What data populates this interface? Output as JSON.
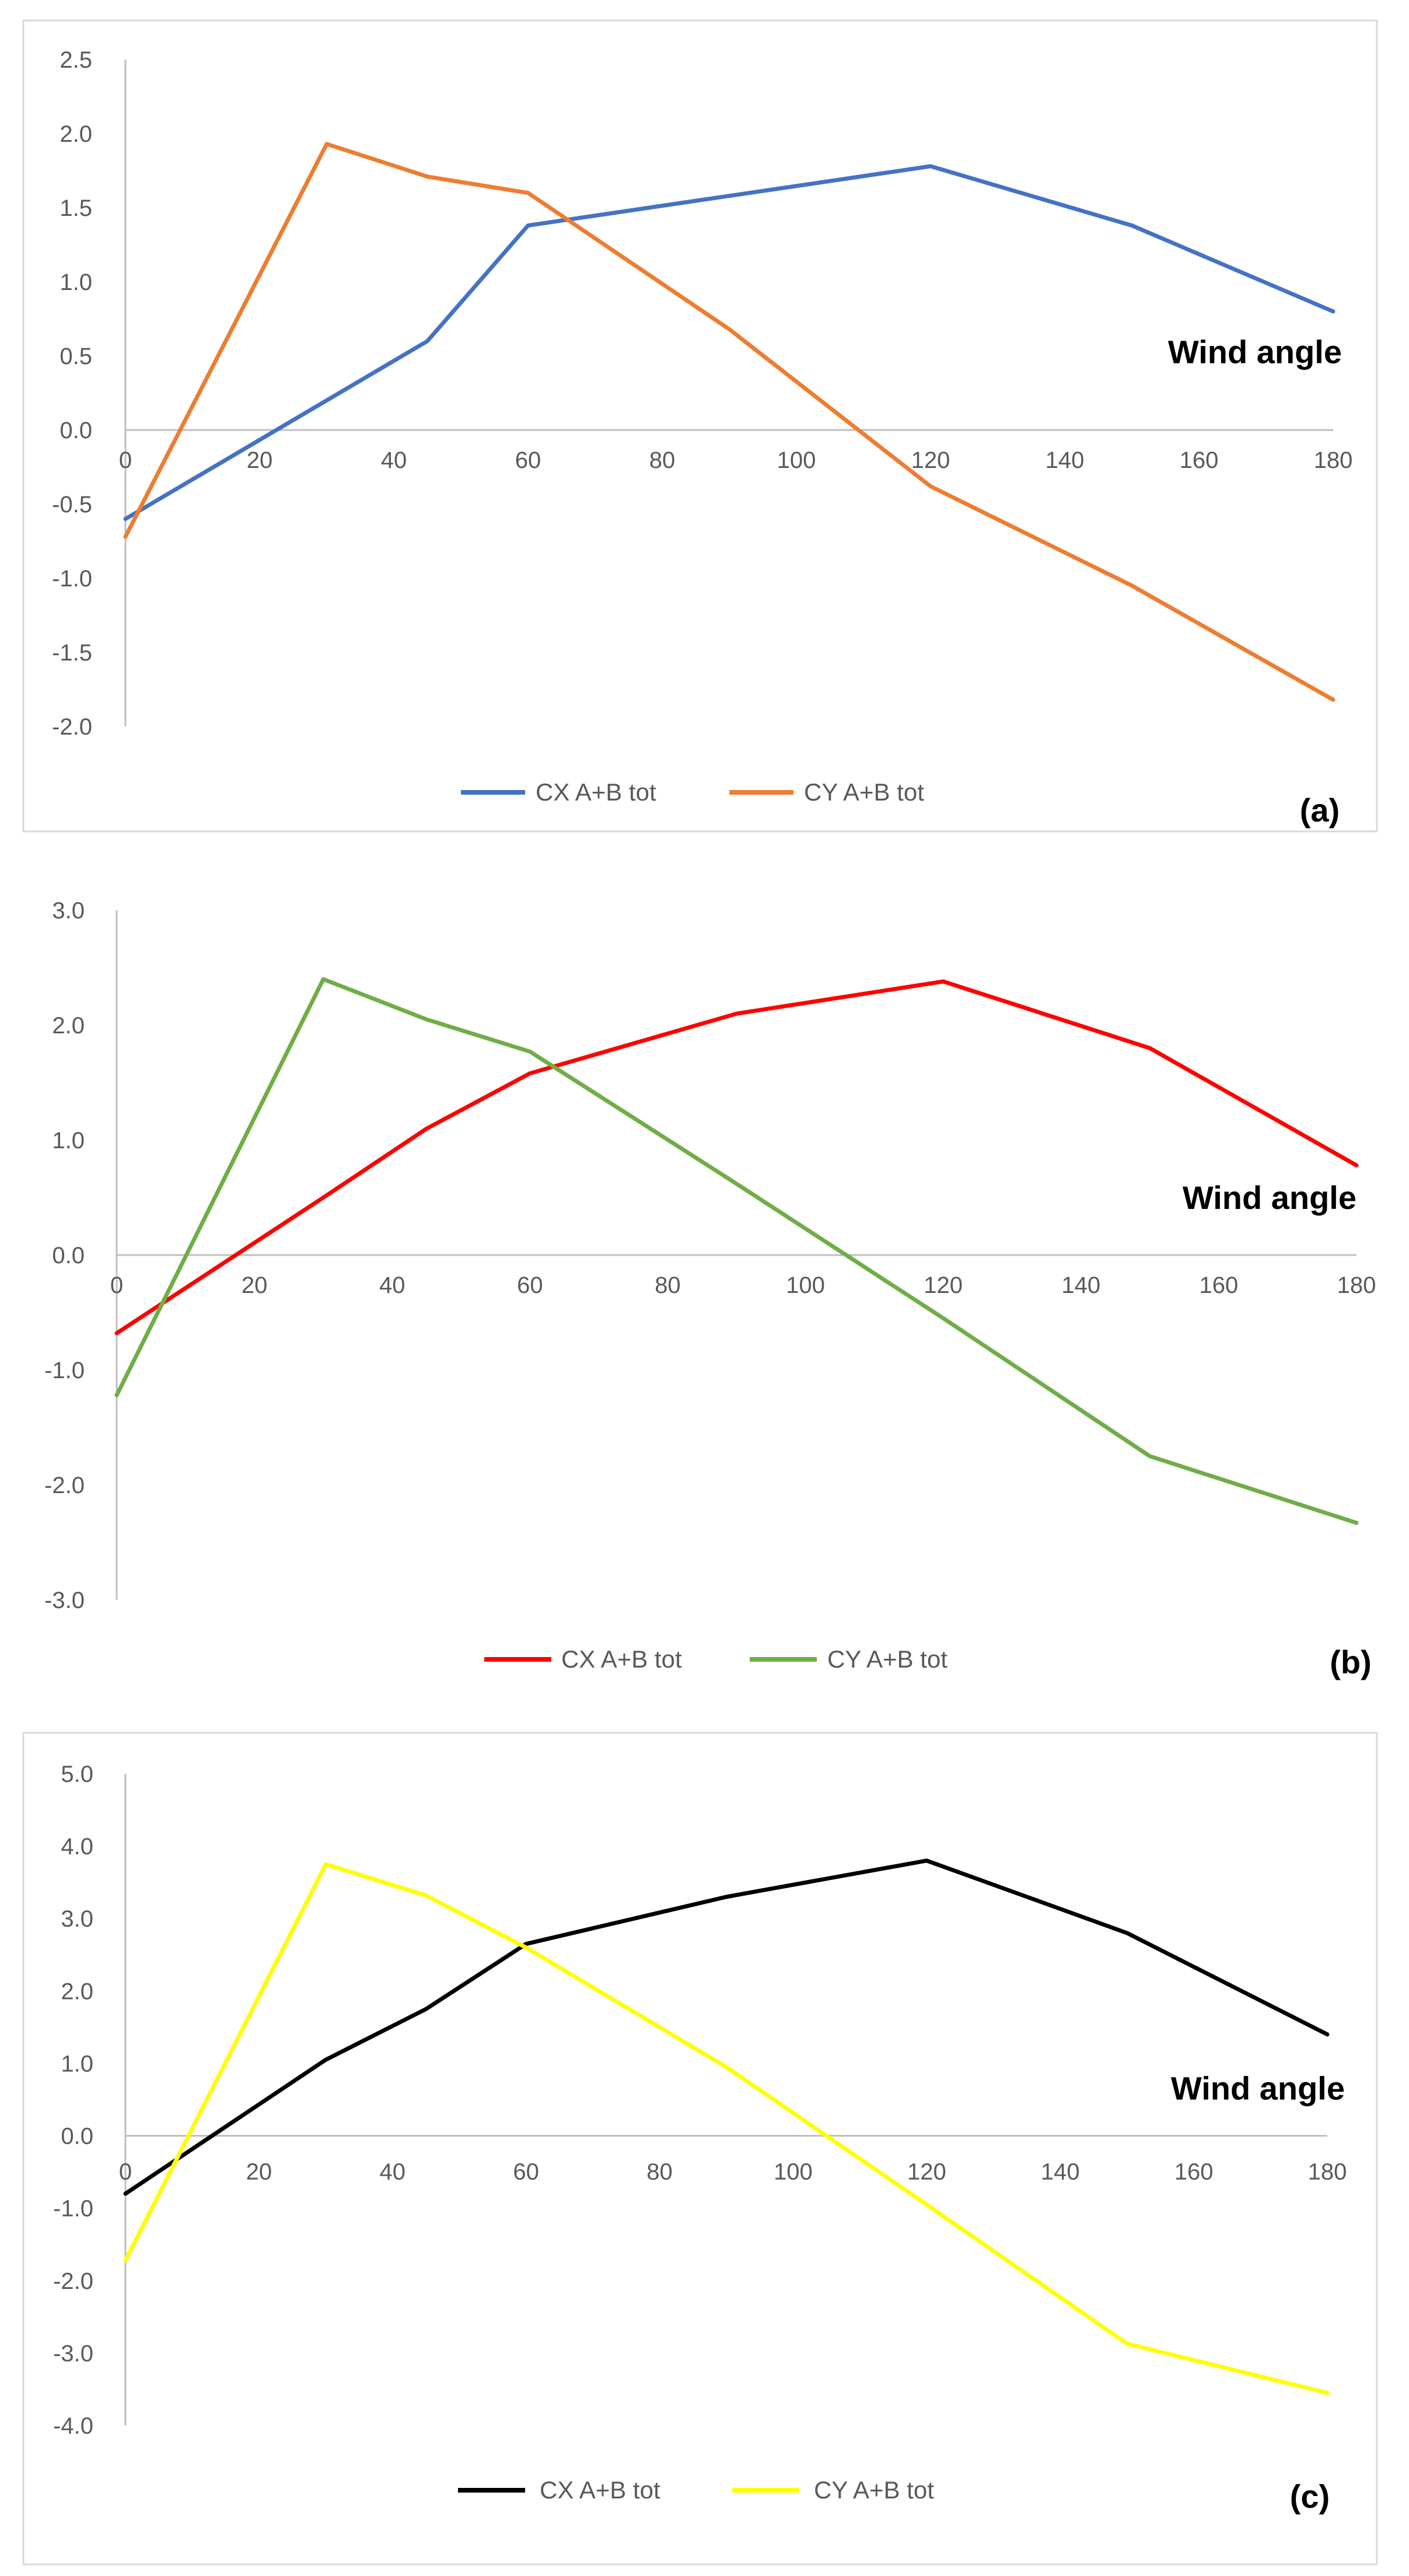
{
  "chart_data": [
    {
      "type": "line",
      "panel_label": "(a)",
      "x_name": "Wind angle",
      "x": [
        0,
        30,
        45,
        60,
        90,
        120,
        150,
        180
      ],
      "x_ticks": [
        0,
        20,
        40,
        60,
        80,
        100,
        120,
        140,
        160,
        180
      ],
      "x_tick_labels": [
        "0",
        "20",
        "40",
        "60",
        "80",
        "100",
        "120",
        "140",
        "160",
        "180"
      ],
      "xlim": [
        0,
        180
      ],
      "ylim": [
        -2.0,
        2.5
      ],
      "y_ticks": [
        -2.0,
        -1.5,
        -1.0,
        -0.5,
        0.0,
        0.5,
        1.0,
        1.5,
        2.0,
        2.5
      ],
      "y_tick_labels": [
        "-2.0",
        "-1.5",
        "-1.0",
        "-0.5",
        "0.0",
        "0.5",
        "1.0",
        "1.5",
        "2.0",
        "2.5"
      ],
      "series": [
        {
          "name": "CX A+B tot",
          "color": "#4472c4",
          "values": [
            -0.6,
            0.2,
            0.6,
            1.38,
            1.58,
            1.78,
            1.38,
            0.8
          ]
        },
        {
          "name": "CY A+B tot",
          "color": "#ed7d31",
          "values": [
            -0.72,
            1.93,
            1.71,
            1.6,
            0.68,
            -0.38,
            -1.05,
            -1.82
          ]
        }
      ]
    },
    {
      "type": "line",
      "panel_label": "(b)",
      "x_name": "Wind angle",
      "x": [
        0,
        30,
        45,
        60,
        90,
        120,
        150,
        180
      ],
      "x_ticks": [
        0,
        20,
        40,
        60,
        80,
        100,
        120,
        140,
        160,
        180
      ],
      "x_tick_labels": [
        "0",
        "20",
        "40",
        "60",
        "80",
        "100",
        "120",
        "140",
        "160",
        "180"
      ],
      "xlim": [
        0,
        180
      ],
      "ylim": [
        -3.0,
        3.0
      ],
      "y_ticks": [
        -3.0,
        -2.0,
        -1.0,
        0.0,
        1.0,
        2.0,
        3.0
      ],
      "y_tick_labels": [
        "-3.0",
        "-2.0",
        "-1.0",
        "0.0",
        "1.0",
        "2.0",
        "3.0"
      ],
      "series": [
        {
          "name": "CX A+B tot",
          "color": "#ff0000",
          "values": [
            -0.68,
            0.5,
            1.1,
            1.58,
            2.1,
            2.38,
            1.8,
            0.78
          ]
        },
        {
          "name": "CY A+B tot",
          "color": "#70ad47",
          "values": [
            -1.22,
            2.4,
            2.05,
            1.77,
            0.62,
            -0.55,
            -1.75,
            -2.33
          ]
        }
      ]
    },
    {
      "type": "line",
      "panel_label": "(c)",
      "x_name": "Wind angle",
      "x": [
        0,
        30,
        45,
        60,
        90,
        120,
        150,
        180
      ],
      "x_ticks": [
        0,
        20,
        40,
        60,
        80,
        100,
        120,
        140,
        160,
        180
      ],
      "x_tick_labels": [
        "0",
        "20",
        "40",
        "60",
        "80",
        "100",
        "120",
        "140",
        "160",
        "180"
      ],
      "xlim": [
        0,
        180
      ],
      "ylim": [
        -4.0,
        5.0
      ],
      "y_ticks": [
        -4.0,
        -3.0,
        -2.0,
        -1.0,
        0.0,
        1.0,
        2.0,
        3.0,
        4.0,
        5.0
      ],
      "y_tick_labels": [
        "-4.0",
        "-3.0",
        "-2.0",
        "-1.0",
        "0.0",
        "1.0",
        "2.0",
        "3.0",
        "4.0",
        "5.0"
      ],
      "series": [
        {
          "name": "CX A+B tot",
          "color": "#000000",
          "values": [
            -0.8,
            1.05,
            1.75,
            2.65,
            3.3,
            3.8,
            2.8,
            1.4
          ]
        },
        {
          "name": "CY A+B tot",
          "color": "#ffff00",
          "values": [
            -1.72,
            3.75,
            3.32,
            2.6,
            0.95,
            -0.95,
            -2.87,
            -3.55
          ]
        }
      ]
    }
  ]
}
